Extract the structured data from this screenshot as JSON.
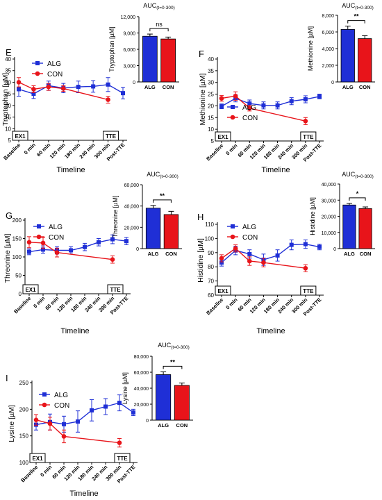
{
  "colors": {
    "alg": "#1f2fd6",
    "con": "#e8141a",
    "axis": "#000000"
  },
  "chart_data": [
    {
      "panel_label": "E",
      "type": "line",
      "ylabel": "Tryptophan [µM]",
      "xlabel": "Timeline",
      "ylim": [
        5,
        40
      ],
      "yticks": [
        5,
        10,
        15,
        20,
        25,
        30,
        35,
        40
      ],
      "categories": [
        "Baseline",
        "0 min",
        "60 min",
        "120 min",
        "180 min",
        "240 min",
        "300 min",
        "Post-TTE"
      ],
      "series": [
        {
          "name": "ALG",
          "marker": "square",
          "values": [
            27,
            25,
            28.5,
            27.5,
            28,
            28.2,
            29,
            25.3
          ],
          "errors": [
            3,
            2,
            2,
            2,
            2.5,
            2.5,
            3,
            2.5
          ]
        },
        {
          "name": "CON",
          "marker": "circle",
          "values": [
            30,
            27,
            28,
            27.3,
            null,
            null,
            22.5,
            null
          ],
          "errors": [
            2,
            1.5,
            1.5,
            1.2,
            null,
            null,
            1.5,
            null
          ]
        }
      ],
      "boxes": [
        {
          "text": "EX1",
          "at": 0
        },
        {
          "text": "TTE",
          "at": 6
        }
      ],
      "inset": {
        "type": "bar",
        "title": "AUC(t=0-300)",
        "ylabel": "Tryptophan [µM]",
        "ylim": [
          0,
          12000
        ],
        "yticks": [
          "0",
          "3,000",
          "6,000",
          "9,000",
          "12,000"
        ],
        "categories": [
          "ALG",
          "CON"
        ],
        "values": [
          8400,
          7900
        ],
        "errors": [
          400,
          350
        ],
        "significance": "ns"
      }
    },
    {
      "panel_label": "F",
      "type": "line",
      "ylabel": "Methionine [µM]",
      "xlabel": "Timeline",
      "ylim": [
        5,
        40
      ],
      "yticks": [
        5,
        10,
        15,
        20,
        25,
        30,
        35,
        40
      ],
      "categories": [
        "Baseline",
        "0 min",
        "60 min",
        "120 min",
        "180 min",
        "240 min",
        "300 min",
        "Post-TTE"
      ],
      "series": [
        {
          "name": "ALG",
          "marker": "square",
          "values": [
            19.8,
            23.2,
            21,
            20.2,
            20.2,
            22,
            22.8,
            24
          ],
          "errors": [
            1,
            1.5,
            1.5,
            1.5,
            1.5,
            1.5,
            1.5,
            1
          ]
        },
        {
          "name": "CON",
          "marker": "circle",
          "values": [
            23.2,
            24.2,
            19,
            null,
            null,
            null,
            13.5,
            null
          ],
          "errors": [
            1.2,
            1.8,
            1.2,
            null,
            null,
            null,
            1.5,
            null
          ]
        }
      ],
      "boxes": [
        {
          "text": "EX1",
          "at": 0
        },
        {
          "text": "TTE",
          "at": 6
        }
      ],
      "inset": {
        "type": "bar",
        "title": "AUC(t=0-300)",
        "ylabel": "Methionine [µM]",
        "ylim": [
          0,
          8000
        ],
        "yticks": [
          "0",
          "2,000",
          "4,000",
          "6,000",
          "8,000"
        ],
        "categories": [
          "ALG",
          "CON"
        ],
        "values": [
          6300,
          5200
        ],
        "errors": [
          400,
          350
        ],
        "significance": "**"
      }
    },
    {
      "panel_label": "G",
      "type": "line",
      "ylabel": "Threonine [µM]",
      "xlabel": "Timeline",
      "ylim": [
        0,
        200
      ],
      "yticks": [
        0,
        50,
        100,
        150,
        200
      ],
      "categories": [
        "Baseline",
        "0 min",
        "60 min",
        "120 min",
        "180 min",
        "240 min",
        "300 min",
        "Post-TTE"
      ],
      "series": [
        {
          "name": "ALG",
          "marker": "square",
          "values": [
            114,
            120,
            118,
            118,
            127,
            140,
            148,
            143
          ],
          "errors": [
            8,
            10,
            10,
            10,
            10,
            10,
            12,
            10
          ]
        },
        {
          "name": "CON",
          "marker": "circle",
          "values": [
            140,
            138,
            112,
            null,
            null,
            null,
            93,
            null
          ],
          "errors": [
            15,
            15,
            12,
            null,
            null,
            null,
            10,
            null
          ]
        }
      ],
      "boxes": [
        {
          "text": "EX1",
          "at": 0
        },
        {
          "text": "TTE",
          "at": 6
        }
      ],
      "inset": {
        "type": "bar",
        "title": "AUC(t=0-300)",
        "ylabel": "Threonine [µM]",
        "ylim": [
          0,
          60000
        ],
        "yticks": [
          "0",
          "20,000",
          "40,000",
          "60,000"
        ],
        "categories": [
          "ALG",
          "CON"
        ],
        "values": [
          38000,
          32000
        ],
        "errors": [
          2500,
          3000
        ],
        "significance": "**"
      }
    },
    {
      "panel_label": "H",
      "type": "line",
      "ylabel": "Histidine [µM]",
      "xlabel": "Timeline",
      "ylim": [
        60,
        110
      ],
      "yticks": [
        60,
        70,
        80,
        90,
        100,
        110
      ],
      "categories": [
        "Baseline",
        "0 min",
        "60 min",
        "120 min",
        "180 min",
        "240 min",
        "300 min",
        "Post-TTE"
      ],
      "series": [
        {
          "name": "ALG",
          "marker": "square",
          "values": [
            83,
            91.5,
            89,
            85,
            88,
            95.5,
            96,
            94
          ],
          "errors": [
            2.5,
            3,
            3,
            4,
            4,
            3.5,
            3,
            2
          ]
        },
        {
          "name": "CON",
          "marker": "circle",
          "values": [
            86,
            93,
            84,
            83,
            null,
            null,
            79,
            null
          ],
          "errors": [
            2.5,
            2.5,
            3,
            3,
            null,
            null,
            2.5,
            null
          ]
        }
      ],
      "boxes": [
        {
          "text": "EX1",
          "at": 0
        },
        {
          "text": "TTE",
          "at": 6
        }
      ],
      "inset": {
        "type": "bar",
        "title": "AUC(t=0-300)",
        "ylabel": "Histidine [µM]",
        "ylim": [
          0,
          40000
        ],
        "yticks": [
          "0",
          "10,000",
          "20,000",
          "30,000",
          "40,000"
        ],
        "categories": [
          "ALG",
          "CON"
        ],
        "values": [
          27000,
          24800
        ],
        "errors": [
          1000,
          1000
        ],
        "significance": "*"
      }
    },
    {
      "panel_label": "I",
      "type": "line",
      "ylabel": "Lysine [µM]",
      "xlabel": "Timeline",
      "ylim": [
        100,
        250
      ],
      "yticks": [
        100,
        150,
        200,
        250
      ],
      "categories": [
        "Baseline",
        "0 min",
        "60 min",
        "120 min",
        "180 min",
        "240 min",
        "300 min",
        "Post-TTE"
      ],
      "series": [
        {
          "name": "ALG",
          "marker": "square",
          "values": [
            171,
            176,
            172,
            177,
            198,
            205,
            212,
            194
          ],
          "errors": [
            10,
            15,
            15,
            20,
            20,
            15,
            15,
            6
          ]
        },
        {
          "name": "CON",
          "marker": "circle",
          "values": [
            180,
            173,
            149,
            null,
            null,
            null,
            137,
            null
          ],
          "errors": [
            10,
            12,
            12,
            null,
            null,
            null,
            8,
            null
          ]
        }
      ],
      "boxes": [
        {
          "text": "EX1",
          "at": 0
        },
        {
          "text": "TTE",
          "at": 6
        }
      ],
      "inset": {
        "type": "bar",
        "title": "AUC(t=0-300)",
        "ylabel": "Lysine [µM]",
        "ylim": [
          0,
          80000
        ],
        "yticks": [
          "0",
          "20,000",
          "40,000",
          "60,000",
          "80,000"
        ],
        "categories": [
          "ALG",
          "CON"
        ],
        "values": [
          57000,
          43500
        ],
        "errors": [
          3500,
          3000
        ],
        "significance": "**"
      }
    }
  ]
}
